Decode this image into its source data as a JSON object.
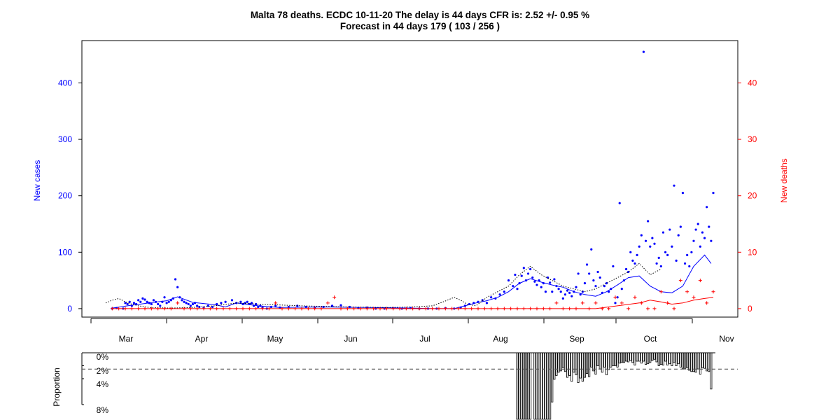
{
  "chart_data": [
    {
      "type": "scatter",
      "title": "Malta 78 deaths. ECDC 10-11-20 The delay is 44 days CFR is: 2.52 +/- 0.95 %",
      "subtitle": "Forecast in 44 days 179 ( 103 / 256 )",
      "ylabel": "New cases",
      "y2label": "New deaths",
      "x_tick_labels": [
        "Mar",
        "Apr",
        "May",
        "Jun",
        "Jul",
        "Aug",
        "Sep",
        "Oct",
        "Nov"
      ],
      "ylim": [
        -15,
        475
      ],
      "y_ticks": [
        0,
        100,
        200,
        300,
        400
      ],
      "y2lim": [
        -1.5,
        47.5
      ],
      "y2_ticks": [
        0,
        10,
        20,
        30,
        40
      ],
      "colors": {
        "cases": "#0000ff",
        "deaths": "#ff0000",
        "forecast": "#000000"
      },
      "series": [
        {
          "name": "New cases",
          "marker": "dot",
          "x": [
            3,
            5,
            8,
            9,
            10,
            11,
            12,
            13,
            14,
            15,
            16,
            17,
            18,
            19,
            20,
            21,
            22,
            23,
            24,
            25,
            26,
            27,
            28,
            29,
            30,
            31,
            32,
            33,
            34,
            35,
            36,
            37,
            38,
            39,
            40,
            41,
            42,
            43,
            45,
            47,
            49,
            51,
            53,
            55,
            58,
            60,
            62,
            63,
            64,
            65,
            66,
            67,
            68,
            69,
            70,
            71,
            72,
            74,
            76,
            78,
            80,
            84,
            88,
            92,
            96,
            100,
            104,
            108,
            112,
            116,
            120,
            124,
            128,
            132,
            136,
            140,
            144,
            148,
            152,
            156,
            160,
            163,
            165,
            167,
            169,
            171,
            173,
            175,
            177,
            179,
            181,
            183,
            185,
            187,
            188,
            189,
            190,
            191,
            192,
            193,
            194,
            195,
            196,
            197,
            198,
            199,
            200,
            201,
            202,
            203,
            204,
            205,
            206,
            207,
            208,
            209,
            210,
            211,
            212,
            213,
            214,
            215,
            216,
            217,
            218,
            219,
            220,
            221,
            222,
            223,
            224,
            225,
            226,
            227,
            228,
            229,
            230,
            231,
            232,
            233,
            234,
            235,
            236,
            237,
            238,
            239,
            240,
            241,
            242,
            243,
            244,
            245,
            246,
            247,
            248,
            249,
            250,
            251,
            252,
            253,
            254,
            255,
            256,
            257,
            258,
            259,
            260,
            261,
            262,
            263,
            264,
            265,
            266,
            267,
            268,
            269,
            270,
            271,
            272,
            273,
            274,
            275,
            276,
            277,
            278,
            279
          ],
          "values": [
            0,
            1,
            0,
            10,
            8,
            12,
            5,
            10,
            8,
            15,
            12,
            18,
            16,
            12,
            10,
            8,
            15,
            12,
            8,
            5,
            12,
            20,
            10,
            12,
            15,
            18,
            52,
            38,
            20,
            15,
            12,
            10,
            8,
            5,
            8,
            10,
            5,
            3,
            2,
            5,
            3,
            8,
            10,
            12,
            15,
            10,
            12,
            8,
            10,
            12,
            8,
            10,
            5,
            8,
            3,
            5,
            2,
            0,
            3,
            5,
            2,
            3,
            5,
            3,
            2,
            3,
            5,
            6,
            3,
            1,
            2,
            0,
            0,
            1,
            0,
            1,
            0,
            0,
            0,
            1,
            0,
            2,
            5,
            8,
            10,
            12,
            15,
            10,
            20,
            18,
            25,
            30,
            50,
            40,
            60,
            35,
            45,
            58,
            72,
            50,
            62,
            70,
            55,
            48,
            42,
            50,
            38,
            45,
            30,
            55,
            46,
            30,
            52,
            40,
            35,
            30,
            18,
            25,
            32,
            28,
            22,
            30,
            38,
            62,
            25,
            30,
            45,
            78,
            62,
            105,
            50,
            40,
            65,
            55,
            28,
            40,
            45,
            30,
            35,
            75,
            10,
            20,
            187,
            35,
            50,
            70,
            65,
            100,
            85,
            80,
            95,
            110,
            130,
            455,
            120,
            155,
            110,
            125,
            115,
            80,
            90,
            75,
            135,
            100,
            95,
            140,
            110,
            218,
            85,
            130,
            145,
            205,
            80,
            95,
            75,
            100,
            120,
            140,
            150,
            110,
            135,
            125,
            180,
            145,
            120,
            205
          ]
        },
        {
          "name": "Smoothed cases",
          "line": "solid",
          "x": [
            3,
            10,
            20,
            28,
            33,
            40,
            50,
            55,
            60,
            70,
            80,
            100,
            120,
            140,
            150,
            160,
            165,
            170,
            175,
            180,
            185,
            190,
            195,
            200,
            205,
            210,
            215,
            220,
            225,
            230,
            235,
            240,
            245,
            250,
            255,
            260,
            265,
            270,
            275,
            278
          ],
          "values": [
            1,
            5,
            10,
            14,
            21,
            11,
            7,
            3,
            10,
            5,
            2,
            3,
            2,
            1,
            0,
            0,
            5,
            10,
            14,
            20,
            30,
            45,
            53,
            47,
            42,
            38,
            30,
            25,
            22,
            30,
            42,
            55,
            58,
            40,
            30,
            28,
            40,
            75,
            95,
            80
          ]
        },
        {
          "name": "Forecast",
          "line": "dotted",
          "x": [
            0,
            3,
            6,
            9,
            12,
            15,
            20,
            30,
            40,
            50,
            60,
            70,
            90,
            110,
            130,
            140,
            150,
            155,
            160,
            163,
            166,
            170,
            175,
            180,
            185,
            190,
            195,
            200,
            205,
            210,
            215,
            220,
            225,
            230,
            235,
            240,
            245,
            250,
            255
          ],
          "values": [
            10,
            15,
            18,
            12,
            8,
            5,
            2,
            1,
            2,
            5,
            10,
            8,
            5,
            3,
            2,
            3,
            5,
            12,
            20,
            15,
            8,
            5,
            20,
            30,
            40,
            60,
            75,
            60,
            50,
            40,
            35,
            30,
            35,
            45,
            55,
            65,
            80,
            60,
            70
          ]
        },
        {
          "name": "New deaths",
          "marker": "plus",
          "axis": "right",
          "x": [
            3,
            6,
            9,
            12,
            15,
            18,
            21,
            24,
            27,
            30,
            33,
            36,
            39,
            42,
            45,
            48,
            51,
            54,
            57,
            60,
            63,
            66,
            69,
            72,
            75,
            78,
            81,
            84,
            87,
            90,
            93,
            96,
            99,
            102,
            105,
            108,
            111,
            114,
            117,
            120,
            123,
            126,
            129,
            132,
            135,
            138,
            141,
            144,
            147,
            150,
            153,
            156,
            159,
            162,
            165,
            168,
            171,
            174,
            177,
            180,
            183,
            186,
            189,
            192,
            195,
            198,
            201,
            204,
            207,
            210,
            213,
            216,
            219,
            222,
            225,
            228,
            231,
            234,
            237,
            240,
            243,
            246,
            249,
            252,
            255,
            258,
            261,
            264,
            267,
            270,
            273,
            276,
            279
          ],
          "values": [
            0,
            0,
            0,
            0,
            0,
            0,
            0,
            0,
            0,
            0,
            1,
            0,
            0,
            0,
            0,
            0,
            0,
            0,
            0,
            0,
            0,
            0,
            0,
            0,
            0,
            1,
            0,
            0,
            0,
            0,
            0,
            0,
            0,
            1,
            2,
            0,
            0,
            0,
            0,
            0,
            0,
            0,
            0,
            0,
            0,
            0,
            0,
            0,
            0,
            0,
            0,
            0,
            0,
            0,
            0,
            0,
            0,
            0,
            0,
            0,
            0,
            0,
            0,
            0,
            0,
            0,
            0,
            0,
            1,
            0,
            0,
            0,
            1,
            0,
            1,
            0,
            0,
            2,
            1,
            0,
            2,
            1,
            0,
            0,
            3,
            1,
            0,
            5,
            3,
            2,
            5,
            1,
            3
          ]
        },
        {
          "name": "Smoothed deaths",
          "line": "solid",
          "axis": "right",
          "x": [
            3,
            100,
            140,
            200,
            225,
            235,
            245,
            250,
            255,
            260,
            265,
            270,
            275,
            279
          ],
          "values": [
            0,
            0,
            0,
            0,
            0,
            0.5,
            1,
            1.5,
            1.2,
            0.8,
            1.0,
            1.5,
            1.8,
            2.0
          ]
        }
      ]
    },
    {
      "type": "bar",
      "ylabel": "Proportion",
      "y_tick_labels": [
        "0%",
        "2%",
        "4%",
        "8%"
      ],
      "reference_line_pct": 2.52,
      "x": [
        189,
        190,
        191,
        192,
        193,
        194,
        195,
        196,
        197,
        198,
        199,
        200,
        201,
        202,
        203,
        204,
        205,
        206,
        207,
        208,
        209,
        210,
        211,
        212,
        213,
        214,
        215,
        216,
        217,
        218,
        219,
        220,
        221,
        222,
        223,
        224,
        225,
        226,
        227,
        228,
        229,
        230,
        231,
        232,
        233,
        234,
        235,
        236,
        237,
        238,
        239,
        240,
        241,
        242,
        243,
        244,
        245,
        246,
        247,
        248,
        249,
        250,
        251,
        252,
        253,
        254,
        255,
        256,
        257,
        258,
        259,
        260,
        261,
        262,
        263,
        264,
        265,
        266,
        267,
        268,
        269,
        270,
        271,
        272,
        273,
        274,
        275,
        276,
        277,
        278
      ],
      "values": [
        11,
        11,
        11,
        11,
        11,
        11,
        11,
        0,
        11,
        11,
        11,
        11,
        11,
        11,
        11,
        11,
        7.6,
        4.1,
        3.5,
        3.0,
        2.8,
        2.3,
        2.9,
        3.8,
        3.5,
        4.4,
        3.0,
        3.4,
        4.6,
        3.9,
        4.4,
        3.8,
        3.2,
        3.7,
        2.2,
        2.8,
        3.3,
        2.0,
        2.5,
        3.0,
        2.2,
        3.4,
        2.6,
        2.2,
        2.0,
        2.0,
        2.2,
        1.6,
        1.5,
        1.5,
        1.3,
        1.4,
        1.2,
        1.5,
        1.9,
        1.3,
        1.3,
        1.6,
        1.3,
        1.8,
        1.7,
        1.5,
        1.2,
        1.0,
        1.4,
        2.0,
        1.8,
        1.9,
        1.3,
        1.9,
        1.7,
        2.0,
        1.5,
        2.0,
        1.7,
        2.2,
        2.4,
        2.5,
        2.3,
        2.7,
        2.9,
        2.9,
        3.0,
        2.5,
        3.3,
        2.3,
        2.4,
        2.8,
        2.9,
        5.6
      ]
    }
  ]
}
